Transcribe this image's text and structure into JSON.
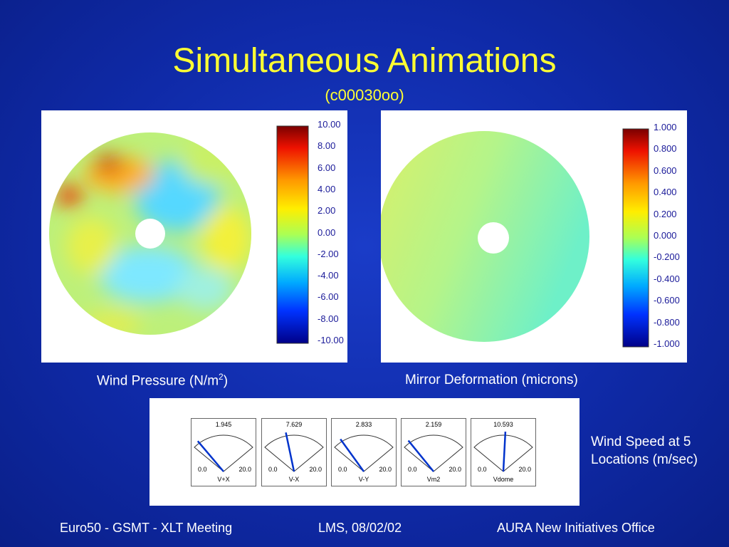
{
  "title": "Simultaneous Animations",
  "subtitle": "(c00030oo)",
  "left_panel": {
    "caption_main": "Wind Pressure (N/m",
    "caption_sup": "2",
    "caption_end": ")",
    "scale": [
      "10.00",
      "8.00",
      "6.00",
      "4.00",
      "2.00",
      "0.00",
      "-2.00",
      "-4.00",
      "-6.00",
      "-8.00",
      "-10.00"
    ]
  },
  "right_panel": {
    "caption": "Mirror Deformation (microns)",
    "scale": [
      "1.000",
      "0.800",
      "0.600",
      "0.400",
      "0.200",
      "0.000",
      "-0.200",
      "-0.400",
      "-0.600",
      "-0.800",
      "-1.000"
    ]
  },
  "gauges": [
    {
      "value": "1.945",
      "min": "0.0",
      "max": "20.0",
      "name": "V+X"
    },
    {
      "value": "7.629",
      "min": "0.0",
      "max": "20.0",
      "name": "V-X"
    },
    {
      "value": "2.833",
      "min": "0.0",
      "max": "20.0",
      "name": "V-Y"
    },
    {
      "value": "2.159",
      "min": "0.0",
      "max": "20.0",
      "name": "Vm2"
    },
    {
      "value": "10.593",
      "min": "0.0",
      "max": "20.0",
      "name": "Vdome"
    }
  ],
  "gauge_caption": [
    "Wind Speed at 5",
    "Locations (m/sec)"
  ],
  "footer": {
    "left": "Euro50 - GSMT - XLT Meeting",
    "center": "LMS, 08/02/02",
    "right": "AURA New Initiatives Office"
  }
}
